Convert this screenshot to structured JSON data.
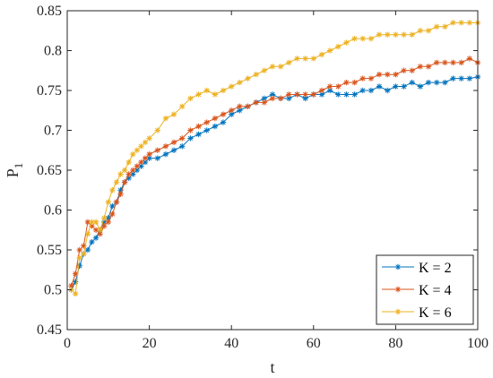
{
  "chart_data": {
    "type": "line",
    "xlabel": "t",
    "ylabel": "P",
    "ylabel_subscript": "1",
    "xlim": [
      0,
      100
    ],
    "ylim": [
      0.45,
      0.85
    ],
    "xticks": [
      0,
      20,
      40,
      60,
      80,
      100
    ],
    "xtick_labels": [
      "0",
      "20",
      "40",
      "60",
      "80",
      "100"
    ],
    "yticks": [
      0.45,
      0.5,
      0.55,
      0.6,
      0.65,
      0.7,
      0.75,
      0.8,
      0.85
    ],
    "ytick_labels": [
      "0.45",
      "0.5",
      "0.55",
      "0.6",
      "0.65",
      "0.7",
      "0.75",
      "0.8",
      "0.85"
    ],
    "grid": false,
    "marker": "asterisk",
    "legend_position": "bottom-right",
    "series": [
      {
        "name": "K = 2",
        "color": "#0072BD",
        "x": [
          1,
          2,
          3,
          4,
          5,
          6,
          7,
          8,
          9,
          10,
          11,
          12,
          13,
          14,
          15,
          16,
          17,
          18,
          19,
          20,
          22,
          24,
          26,
          28,
          30,
          32,
          34,
          36,
          38,
          40,
          42,
          44,
          46,
          48,
          50,
          52,
          54,
          56,
          58,
          60,
          62,
          64,
          66,
          68,
          70,
          72,
          74,
          76,
          78,
          80,
          82,
          84,
          86,
          88,
          90,
          92,
          94,
          96,
          98,
          100
        ],
        "y": [
          0.5,
          0.51,
          0.53,
          0.545,
          0.55,
          0.56,
          0.565,
          0.575,
          0.585,
          0.59,
          0.605,
          0.61,
          0.625,
          0.635,
          0.64,
          0.645,
          0.65,
          0.655,
          0.66,
          0.665,
          0.665,
          0.67,
          0.675,
          0.68,
          0.69,
          0.695,
          0.7,
          0.705,
          0.71,
          0.72,
          0.725,
          0.73,
          0.735,
          0.74,
          0.745,
          0.74,
          0.74,
          0.745,
          0.74,
          0.745,
          0.745,
          0.75,
          0.745,
          0.745,
          0.745,
          0.75,
          0.75,
          0.755,
          0.75,
          0.755,
          0.755,
          0.76,
          0.755,
          0.76,
          0.76,
          0.76,
          0.765,
          0.765,
          0.765,
          0.767
        ]
      },
      {
        "name": "K = 4",
        "color": "#D95319",
        "x": [
          1,
          2,
          3,
          4,
          5,
          6,
          7,
          8,
          9,
          10,
          11,
          12,
          13,
          14,
          15,
          16,
          17,
          18,
          19,
          20,
          22,
          24,
          26,
          28,
          30,
          32,
          34,
          36,
          38,
          40,
          42,
          44,
          46,
          48,
          50,
          52,
          54,
          56,
          58,
          60,
          62,
          64,
          66,
          68,
          70,
          72,
          74,
          76,
          78,
          80,
          82,
          84,
          86,
          88,
          90,
          92,
          94,
          96,
          98,
          100
        ],
        "y": [
          0.505,
          0.52,
          0.55,
          0.555,
          0.585,
          0.58,
          0.575,
          0.57,
          0.58,
          0.585,
          0.595,
          0.61,
          0.62,
          0.635,
          0.645,
          0.65,
          0.655,
          0.66,
          0.665,
          0.67,
          0.675,
          0.68,
          0.685,
          0.69,
          0.7,
          0.705,
          0.71,
          0.715,
          0.72,
          0.725,
          0.73,
          0.73,
          0.735,
          0.735,
          0.74,
          0.74,
          0.745,
          0.745,
          0.745,
          0.745,
          0.75,
          0.755,
          0.755,
          0.76,
          0.76,
          0.765,
          0.765,
          0.77,
          0.77,
          0.77,
          0.775,
          0.775,
          0.78,
          0.78,
          0.785,
          0.785,
          0.785,
          0.785,
          0.79,
          0.785
        ]
      },
      {
        "name": "K = 6",
        "color": "#EDB120",
        "x": [
          1,
          2,
          3,
          4,
          5,
          6,
          7,
          8,
          9,
          10,
          11,
          12,
          13,
          14,
          15,
          16,
          17,
          18,
          19,
          20,
          22,
          24,
          26,
          28,
          30,
          32,
          34,
          36,
          38,
          40,
          42,
          44,
          46,
          48,
          50,
          52,
          54,
          56,
          58,
          60,
          62,
          64,
          66,
          68,
          70,
          72,
          74,
          76,
          78,
          80,
          82,
          84,
          86,
          88,
          90,
          92,
          94,
          96,
          98,
          100
        ],
        "y": [
          0.5,
          0.495,
          0.54,
          0.545,
          0.57,
          0.585,
          0.585,
          0.575,
          0.59,
          0.61,
          0.625,
          0.635,
          0.645,
          0.65,
          0.66,
          0.67,
          0.675,
          0.68,
          0.685,
          0.69,
          0.7,
          0.715,
          0.72,
          0.73,
          0.74,
          0.745,
          0.75,
          0.745,
          0.75,
          0.755,
          0.76,
          0.765,
          0.77,
          0.775,
          0.78,
          0.78,
          0.785,
          0.79,
          0.79,
          0.79,
          0.795,
          0.8,
          0.805,
          0.81,
          0.815,
          0.815,
          0.815,
          0.82,
          0.82,
          0.82,
          0.82,
          0.82,
          0.825,
          0.825,
          0.83,
          0.83,
          0.835,
          0.835,
          0.835,
          0.835
        ]
      }
    ]
  }
}
